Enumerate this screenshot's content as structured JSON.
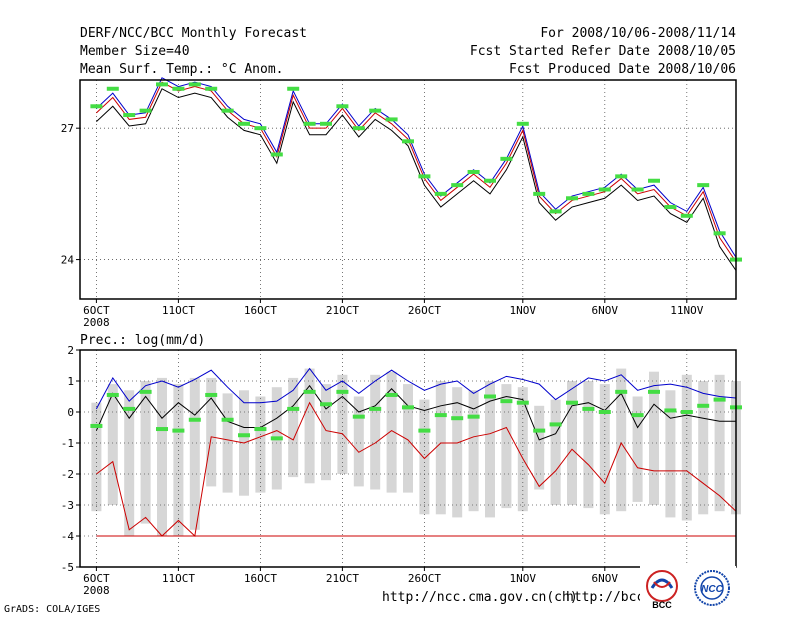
{
  "header": {
    "title": "DERF/NCC/BCC Monthly Forecast",
    "member_size": "Member Size=40",
    "variable": "Mean Surf. Temp.: °C Anom.",
    "period": "For 2008/10/06-2008/11/14",
    "fcst_started": "Fcst Started Refer Date 2008/10/05",
    "fcst_produced": "Fcst Produced Date 2008/10/06"
  },
  "footer": {
    "url1": "http://ncc.cma.gov.cn(ch)",
    "url2": "http://bcc.",
    "grads": "GrADS: COLA/IGES",
    "logo1_text": "BCC",
    "logo2_text": "NCC"
  },
  "colors": {
    "blue": "#0000cc",
    "red": "#cc0000",
    "black": "#000000",
    "green": "#44dd44",
    "box": "#d6d6d6"
  },
  "chart_data": [
    {
      "type": "line",
      "title": "Mean Surf. Temp.: °C Anom.",
      "x_tick_labels": [
        "6OCT",
        "11OCT",
        "16OCT",
        "21OCT",
        "26OCT",
        "1NOV",
        "6NOV",
        "11NOV"
      ],
      "x_tick_days": [
        1,
        6,
        11,
        16,
        21,
        27,
        32,
        37
      ],
      "year_label": "2008",
      "x_range": [
        0,
        40
      ],
      "ylim": [
        23.1,
        28.1
      ],
      "y_ticks": [
        24,
        27
      ],
      "grid": true,
      "days": [
        1,
        2,
        3,
        4,
        5,
        6,
        7,
        8,
        9,
        10,
        11,
        12,
        13,
        14,
        15,
        16,
        17,
        18,
        19,
        20,
        21,
        22,
        23,
        24,
        25,
        26,
        27,
        28,
        29,
        30,
        31,
        32,
        33,
        34,
        35,
        36,
        37,
        38,
        39,
        40
      ],
      "series": [
        {
          "name": "observed",
          "color": "green",
          "values": [
            27.5,
            27.9,
            27.3,
            27.4,
            28.0,
            27.9,
            28.0,
            27.9,
            27.4,
            27.1,
            27.0,
            26.4,
            27.9,
            27.1,
            27.1,
            27.5,
            27.0,
            27.4,
            27.2,
            26.7,
            25.9,
            25.5,
            25.7,
            26.0,
            25.8,
            26.3,
            27.1,
            25.5,
            25.1,
            25.4,
            25.5,
            25.6,
            25.9,
            25.6,
            25.8,
            25.2,
            25.0,
            25.7,
            24.6,
            24.0
          ]
        },
        {
          "name": "ensemble_max",
          "color": "blue",
          "values": [
            27.45,
            27.8,
            27.3,
            27.35,
            28.15,
            27.95,
            28.05,
            27.95,
            27.5,
            27.2,
            27.1,
            26.45,
            27.85,
            27.1,
            27.1,
            27.55,
            27.05,
            27.45,
            27.2,
            26.85,
            25.95,
            25.45,
            25.75,
            26.05,
            25.75,
            26.3,
            27.05,
            25.55,
            25.15,
            25.45,
            25.55,
            25.65,
            25.95,
            25.6,
            25.7,
            25.3,
            25.1,
            25.65,
            24.65,
            24.05
          ]
        },
        {
          "name": "ensemble_mean",
          "color": "red",
          "values": [
            27.35,
            27.7,
            27.2,
            27.25,
            28.05,
            27.85,
            27.95,
            27.85,
            27.4,
            27.1,
            27.0,
            26.35,
            27.75,
            27.0,
            27.0,
            27.45,
            26.95,
            27.35,
            27.1,
            26.75,
            25.85,
            25.35,
            25.65,
            25.95,
            25.65,
            26.2,
            26.95,
            25.45,
            25.05,
            25.35,
            25.45,
            25.55,
            25.85,
            25.5,
            25.6,
            25.2,
            25.0,
            25.55,
            24.5,
            23.95
          ]
        },
        {
          "name": "ensemble_min",
          "color": "black",
          "values": [
            27.15,
            27.5,
            27.05,
            27.1,
            27.9,
            27.7,
            27.8,
            27.7,
            27.25,
            26.95,
            26.85,
            26.2,
            27.6,
            26.85,
            26.85,
            27.3,
            26.8,
            27.2,
            26.95,
            26.6,
            25.7,
            25.2,
            25.5,
            25.8,
            25.5,
            26.05,
            26.8,
            25.3,
            24.9,
            25.2,
            25.3,
            25.4,
            25.7,
            25.35,
            25.45,
            25.05,
            24.85,
            25.4,
            24.3,
            23.75
          ]
        }
      ]
    },
    {
      "type": "box",
      "title": "Prec.: log(mm/d)",
      "x_tick_labels": [
        "6OCT",
        "11OCT",
        "16OCT",
        "21OCT",
        "26OCT",
        "1NOV",
        "6NOV",
        "11NOV"
      ],
      "x_tick_days": [
        1,
        6,
        11,
        16,
        21,
        27,
        32,
        37
      ],
      "year_label": "2008",
      "x_range": [
        0,
        40
      ],
      "ylim": [
        -5,
        2
      ],
      "y_ticks": [
        -5,
        -4,
        -3,
        -2,
        -1,
        0,
        1,
        2
      ],
      "grid": true,
      "days": [
        1,
        2,
        3,
        4,
        5,
        6,
        7,
        8,
        9,
        10,
        11,
        12,
        13,
        14,
        15,
        16,
        17,
        18,
        19,
        20,
        21,
        22,
        23,
        24,
        25,
        26,
        27,
        28,
        29,
        30,
        31,
        32,
        33,
        34,
        35,
        36,
        37,
        38,
        39,
        40
      ],
      "box_low": [
        -3.2,
        -3.0,
        -4.0,
        -3.6,
        -4.0,
        -4.0,
        -3.8,
        -2.4,
        -2.6,
        -2.7,
        -2.6,
        -2.5,
        -2.1,
        -2.3,
        -2.2,
        -2.0,
        -2.4,
        -2.5,
        -2.6,
        -2.6,
        -3.3,
        -3.3,
        -3.4,
        -3.2,
        -3.4,
        -3.1,
        -3.2,
        -2.5,
        -3.0,
        -3.0,
        -3.1,
        -3.3,
        -3.2,
        -2.9,
        -3.0,
        -3.4,
        -3.5,
        -3.3,
        -3.2,
        -3.3
      ],
      "box_high": [
        0.3,
        0.9,
        0.7,
        1.0,
        1.1,
        0.9,
        1.1,
        1.1,
        0.6,
        0.7,
        0.5,
        0.8,
        1.1,
        1.4,
        0.9,
        1.2,
        0.5,
        1.2,
        1.3,
        0.9,
        0.4,
        1.0,
        0.8,
        0.7,
        1.0,
        0.9,
        0.8,
        0.2,
        0.4,
        1.0,
        1.0,
        0.9,
        1.4,
        0.5,
        1.3,
        0.7,
        1.2,
        1.0,
        1.2,
        1.0
      ],
      "series": [
        {
          "name": "observed",
          "color": "green",
          "values": [
            -0.45,
            0.55,
            0.1,
            0.65,
            -0.55,
            -0.6,
            -0.25,
            0.55,
            -0.25,
            -0.75,
            -0.55,
            -0.85,
            0.1,
            0.65,
            0.25,
            0.65,
            -0.15,
            0.1,
            0.55,
            0.15,
            -0.6,
            -0.1,
            -0.2,
            -0.15,
            0.5,
            0.35,
            0.3,
            -0.6,
            -0.4,
            0.3,
            0.1,
            0.0,
            0.65,
            -0.1,
            0.65,
            0.05,
            0.0,
            0.2,
            0.4,
            0.15
          ]
        },
        {
          "name": "ensemble_max",
          "color": "blue",
          "values": [
            0.1,
            1.1,
            0.35,
            0.85,
            1.0,
            0.8,
            1.05,
            1.35,
            0.8,
            0.3,
            0.3,
            0.35,
            0.7,
            1.4,
            0.7,
            1.0,
            0.6,
            1.0,
            1.35,
            1.0,
            0.7,
            0.9,
            1.0,
            0.6,
            0.9,
            1.15,
            1.05,
            0.9,
            0.4,
            0.75,
            1.1,
            1.0,
            1.2,
            0.7,
            0.85,
            0.9,
            0.8,
            0.6,
            0.5,
            0.45
          ]
        },
        {
          "name": "ensemble_mean",
          "color": "black",
          "values": [
            -0.6,
            0.6,
            -0.2,
            0.5,
            -0.2,
            0.3,
            -0.1,
            0.45,
            -0.3,
            -0.5,
            -0.5,
            -0.2,
            0.2,
            0.85,
            0.1,
            0.5,
            0.0,
            0.2,
            0.75,
            0.2,
            0.05,
            0.2,
            0.3,
            0.1,
            0.35,
            0.5,
            0.4,
            -0.9,
            -0.7,
            0.2,
            0.3,
            0.05,
            0.6,
            -0.5,
            0.25,
            -0.2,
            -0.1,
            -0.2,
            -0.3,
            -0.3
          ]
        },
        {
          "name": "ensemble_min",
          "color": "red",
          "values": [
            -2.0,
            -1.6,
            -3.8,
            -3.4,
            -4.0,
            -3.5,
            -4.0,
            -0.8,
            -0.9,
            -1.0,
            -0.8,
            -0.6,
            -0.9,
            0.3,
            -0.6,
            -0.7,
            -1.3,
            -1.0,
            -0.6,
            -0.9,
            -1.5,
            -1.0,
            -1.0,
            -0.8,
            -0.7,
            -0.5,
            -1.5,
            -2.4,
            -1.9,
            -1.2,
            -1.7,
            -2.3,
            -1.0,
            -1.8,
            -1.9,
            -1.9,
            -1.9,
            -2.3,
            -2.7,
            -3.2
          ]
        },
        {
          "name": "floor_blue",
          "color": "blue",
          "values": [
            -4.0,
            -4.0,
            -4.0,
            -4.0,
            -4.0,
            -4.0,
            -4.0
          ]
        },
        {
          "name": "floor_red",
          "color": "red",
          "values": [
            -4.0,
            -4.0,
            -4.0,
            -4.0,
            -4.0,
            -4.0,
            -4.0,
            -4.0,
            -4.0,
            -4.0,
            -4.0,
            -4.0,
            -4.0,
            -4.0,
            -4.0,
            -4.0,
            -4.0,
            -4.0,
            -4.0,
            -4.0,
            -4.0,
            -4.0,
            -4.0,
            -4.0,
            -4.0,
            -4.0,
            -4.0,
            -4.0,
            -4.0,
            -4.0,
            -4.0,
            -4.0,
            -4.0,
            -4.0,
            -4.0,
            -4.0,
            -4.0,
            -4.0,
            -4.0,
            -4.0
          ]
        }
      ]
    }
  ]
}
